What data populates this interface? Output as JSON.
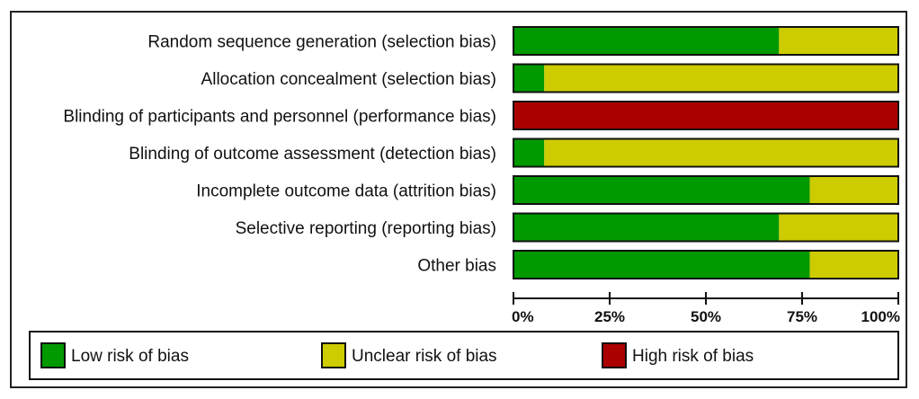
{
  "chart_data": {
    "type": "bar",
    "orientation": "horizontal",
    "stacked": true,
    "categories": [
      "Random sequence generation (selection bias)",
      "Allocation concealment (selection bias)",
      "Blinding of participants and personnel (performance bias)",
      "Blinding of outcome assessment (detection bias)",
      "Incomplete outcome data (attrition bias)",
      "Selective reporting (reporting bias)",
      "Other bias"
    ],
    "series": [
      {
        "name": "Low risk of bias",
        "color": "#009900",
        "values": [
          69,
          8,
          0,
          8,
          77,
          69,
          77
        ]
      },
      {
        "name": "Unclear risk of bias",
        "color": "#CCCC00",
        "values": [
          31,
          92,
          0,
          92,
          23,
          31,
          23
        ]
      },
      {
        "name": "High risk of bias",
        "color": "#AA0000",
        "values": [
          0,
          0,
          100,
          0,
          0,
          0,
          0
        ]
      }
    ],
    "xlim": [
      0,
      100
    ],
    "xticks": [
      0,
      25,
      50,
      75,
      100
    ],
    "xtick_labels": [
      "0%",
      "25%",
      "50%",
      "75%",
      "100%"
    ],
    "grid": false,
    "legend_position": "bottom"
  }
}
